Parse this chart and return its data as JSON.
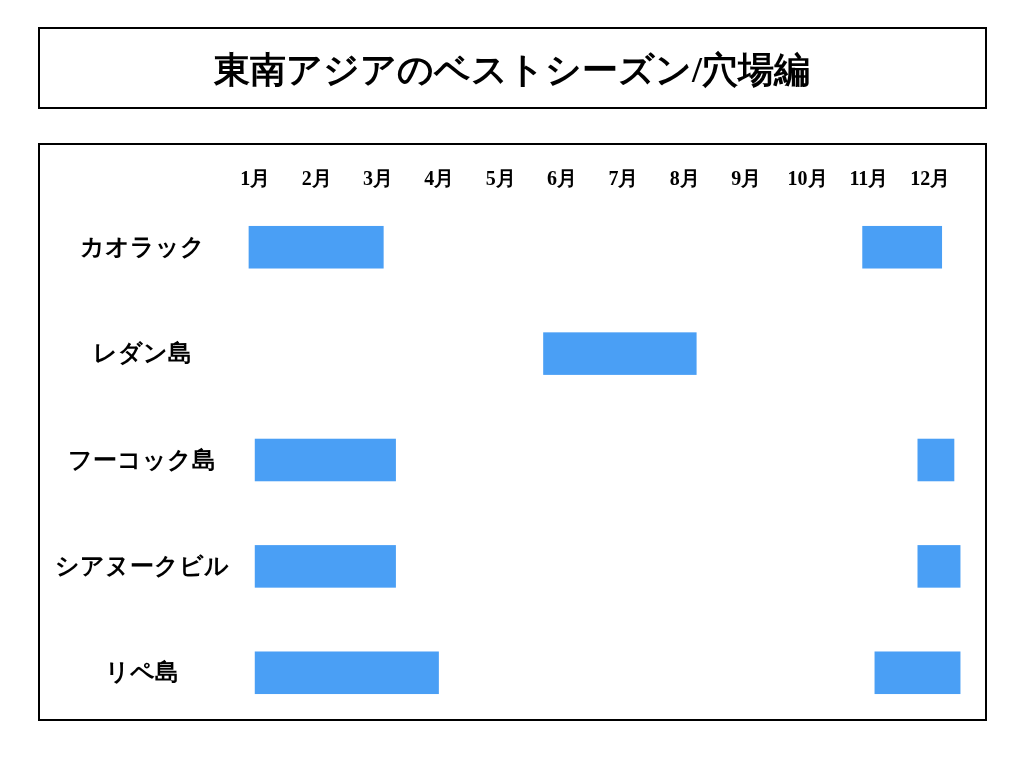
{
  "chart_data": {
    "type": "bar",
    "title": "東南アジアのベストシーズン/穴場編",
    "orientation": "horizontal",
    "categories": [
      "カオラック",
      "レダン島",
      "フーコック島",
      "シアヌークビル",
      "リペ島"
    ],
    "series": [
      {
        "color": "#4a9ff5",
        "base": [
          0.9,
          5.7,
          1.0,
          1.0,
          1.0
        ],
        "values": [
          2.2,
          2.5,
          2.3,
          2.3,
          3.0
        ]
      },
      {
        "color": "#4a9ff5",
        "base": [
          10.9,
          null,
          11.8,
          11.8,
          11.1
        ],
        "values": [
          1.3,
          null,
          0.6,
          0.7,
          1.4
        ]
      }
    ],
    "xlim": [
      -2.5,
      12.9
    ],
    "xticks": [
      {
        "value": 1,
        "label": "1月"
      },
      {
        "value": 2,
        "label": "2月"
      },
      {
        "value": 3,
        "label": "3月"
      },
      {
        "value": 4,
        "label": "4月"
      },
      {
        "value": 5,
        "label": "5月"
      },
      {
        "value": 6,
        "label": "6月"
      },
      {
        "value": 7,
        "label": "7月"
      },
      {
        "value": 8,
        "label": "8月"
      },
      {
        "value": 9,
        "label": "9月"
      },
      {
        "value": 10,
        "label": "10月"
      },
      {
        "value": 11,
        "label": "11月"
      },
      {
        "value": 12,
        "label": "12月"
      }
    ]
  }
}
